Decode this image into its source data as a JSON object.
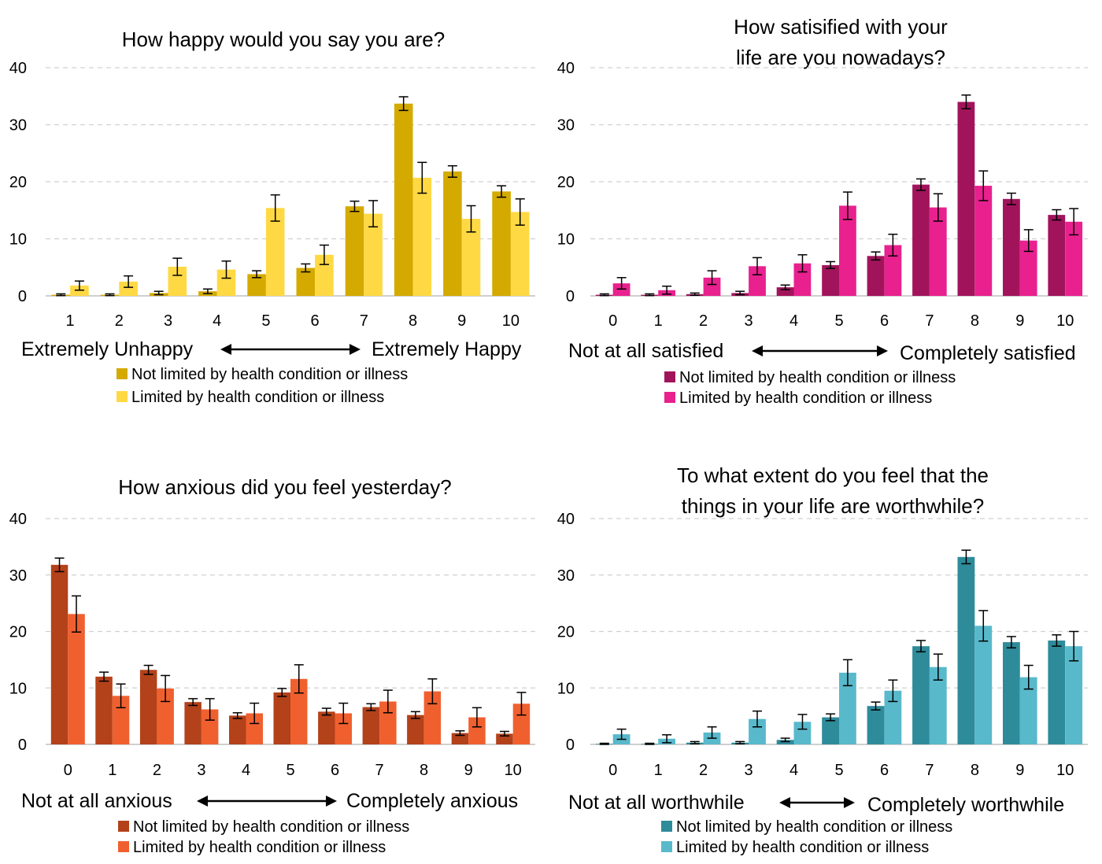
{
  "colors": {
    "axis": "#bfbfbf",
    "grid": "#d0d0d0",
    "text": "#000000"
  },
  "chart_data": [
    {
      "type": "bar",
      "title": "How happy would you say you are?",
      "categories": [
        "1",
        "2",
        "3",
        "4",
        "5",
        "6",
        "7",
        "8",
        "9",
        "10"
      ],
      "ylim": [
        0,
        40
      ],
      "yticks": [
        0,
        10,
        20,
        30,
        40
      ],
      "grid": true,
      "scale_left": "Extremely Unhappy",
      "scale_right": "Extremely Happy",
      "legend_placement": "bottom",
      "series": [
        {
          "name": "Not limited by health condition or illness",
          "color": "#d4aa00",
          "values": [
            0.2,
            0.2,
            0.5,
            0.8,
            3.8,
            4.9,
            15.7,
            33.7,
            21.8,
            18.3
          ],
          "err": [
            0.15,
            0.15,
            0.3,
            0.4,
            0.6,
            0.7,
            0.9,
            1.2,
            1.0,
            1.0
          ]
        },
        {
          "name": "Limited by health condition or illness",
          "color": "#ffd944",
          "values": [
            1.8,
            2.5,
            5.1,
            4.6,
            15.4,
            7.2,
            14.4,
            20.7,
            13.5,
            14.7
          ],
          "err": [
            0.8,
            1.0,
            1.5,
            1.5,
            2.3,
            1.7,
            2.3,
            2.7,
            2.3,
            2.3
          ]
        }
      ]
    },
    {
      "type": "bar",
      "title": "How satisified with your life are you nowadays?",
      "categories": [
        "0",
        "1",
        "2",
        "3",
        "4",
        "5",
        "6",
        "7",
        "8",
        "9",
        "10"
      ],
      "ylim": [
        0,
        40
      ],
      "yticks": [
        0,
        10,
        20,
        30,
        40
      ],
      "grid": true,
      "scale_left": "Not at all satisfied",
      "scale_right": "Completely satisfied",
      "legend_placement": "bottom",
      "series": [
        {
          "name": "Not limited by health condition or illness",
          "color": "#a1145c",
          "values": [
            0.2,
            0.2,
            0.3,
            0.5,
            1.5,
            5.4,
            7.0,
            19.5,
            34.0,
            17.0,
            14.2
          ],
          "err": [
            0.15,
            0.15,
            0.2,
            0.3,
            0.4,
            0.6,
            0.7,
            1.0,
            1.2,
            1.0,
            0.9
          ]
        },
        {
          "name": "Limited by health condition or illness",
          "color": "#e8218e",
          "values": [
            2.2,
            1.0,
            3.2,
            5.2,
            5.7,
            15.8,
            8.9,
            15.5,
            19.3,
            9.7,
            13.0
          ],
          "err": [
            1.0,
            0.7,
            1.2,
            1.5,
            1.5,
            2.4,
            1.9,
            2.4,
            2.6,
            1.9,
            2.3
          ]
        }
      ]
    },
    {
      "type": "bar",
      "title": "How anxious did you feel yesterday?",
      "categories": [
        "0",
        "1",
        "2",
        "3",
        "4",
        "5",
        "6",
        "7",
        "8",
        "9",
        "10"
      ],
      "ylim": [
        0,
        40
      ],
      "yticks": [
        0,
        10,
        20,
        30,
        40
      ],
      "grid": true,
      "scale_left": "Not at all anxious",
      "scale_right": "Completely anxious",
      "legend_placement": "bottom",
      "series": [
        {
          "name": "Not limited by health condition or illness",
          "color": "#b3411a",
          "values": [
            31.8,
            12.0,
            13.2,
            7.5,
            5.1,
            9.2,
            5.8,
            6.6,
            5.2,
            2.0,
            1.9
          ],
          "err": [
            1.2,
            0.8,
            0.8,
            0.6,
            0.5,
            0.7,
            0.6,
            0.6,
            0.6,
            0.4,
            0.4
          ]
        },
        {
          "name": "Limited by health condition or illness",
          "color": "#f0602f",
          "values": [
            23.1,
            8.6,
            9.9,
            6.2,
            5.5,
            11.6,
            5.5,
            7.6,
            9.4,
            4.8,
            7.2
          ],
          "err": [
            3.2,
            2.1,
            2.3,
            1.9,
            1.8,
            2.5,
            1.8,
            2.0,
            2.2,
            1.7,
            2.0
          ]
        }
      ]
    },
    {
      "type": "bar",
      "title": "To what extent do you feel that the things in your life are worthwhile?",
      "categories": [
        "0",
        "1",
        "2",
        "3",
        "4",
        "5",
        "6",
        "7",
        "8",
        "9",
        "10"
      ],
      "ylim": [
        0,
        40
      ],
      "yticks": [
        0,
        10,
        20,
        30,
        40
      ],
      "grid": true,
      "scale_left": "Not at all worthwhile",
      "scale_right": "Completely worthwhile",
      "legend_placement": "bottom",
      "series": [
        {
          "name": "Not limited by health condition or illness",
          "color": "#2e8b9a",
          "values": [
            0.1,
            0.1,
            0.3,
            0.3,
            0.8,
            4.8,
            6.8,
            17.4,
            33.2,
            18.1,
            18.4
          ],
          "err": [
            0.1,
            0.1,
            0.2,
            0.2,
            0.3,
            0.6,
            0.7,
            1.0,
            1.2,
            1.0,
            1.0
          ]
        },
        {
          "name": "Limited by health condition or illness",
          "color": "#58b9cb",
          "values": [
            1.8,
            1.0,
            2.1,
            4.5,
            4.0,
            12.7,
            9.5,
            13.7,
            21.0,
            11.9,
            17.4
          ],
          "err": [
            0.9,
            0.7,
            1.0,
            1.4,
            1.3,
            2.3,
            1.9,
            2.3,
            2.7,
            2.1,
            2.6
          ]
        }
      ]
    }
  ]
}
